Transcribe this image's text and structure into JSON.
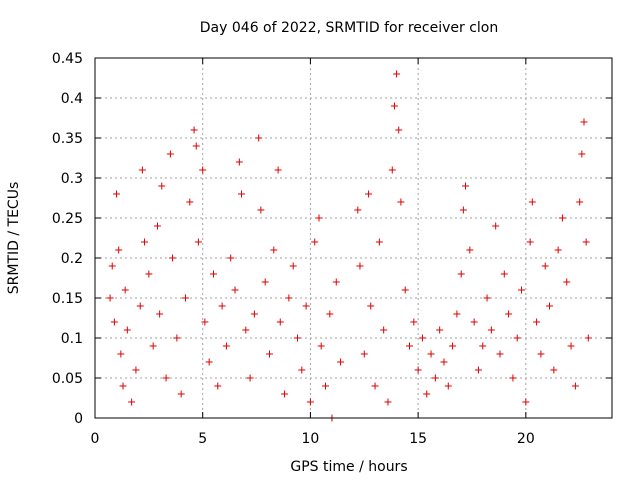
{
  "chart_data": {
    "type": "scatter",
    "title": "Day 046 of 2022, SRMTID for receiver clon",
    "xlabel": "GPS time / hours",
    "ylabel": "SRMTID / TECUs",
    "xlim": [
      0,
      24
    ],
    "ylim": [
      0,
      0.45
    ],
    "xticks": [
      0,
      5,
      10,
      15,
      20
    ],
    "yticks": [
      0,
      0.05,
      0.1,
      0.15,
      0.2,
      0.25,
      0.3,
      0.35,
      0.4,
      0.45
    ],
    "grid": true,
    "marker": "+",
    "color": "#e00000",
    "series": [
      {
        "values": [
          [
            0.7,
            0.15
          ],
          [
            0.8,
            0.19
          ],
          [
            0.9,
            0.12
          ],
          [
            1.0,
            0.28
          ],
          [
            1.1,
            0.21
          ],
          [
            1.2,
            0.08
          ],
          [
            1.3,
            0.04
          ],
          [
            1.4,
            0.16
          ],
          [
            1.5,
            0.11
          ],
          [
            1.7,
            0.02
          ],
          [
            1.9,
            0.06
          ],
          [
            2.1,
            0.14
          ],
          [
            2.2,
            0.31
          ],
          [
            2.3,
            0.22
          ],
          [
            2.5,
            0.18
          ],
          [
            2.7,
            0.09
          ],
          [
            2.9,
            0.24
          ],
          [
            3.0,
            0.13
          ],
          [
            3.1,
            0.29
          ],
          [
            3.3,
            0.05
          ],
          [
            3.5,
            0.33
          ],
          [
            3.6,
            0.2
          ],
          [
            3.8,
            0.1
          ],
          [
            4.0,
            0.03
          ],
          [
            4.2,
            0.15
          ],
          [
            4.4,
            0.27
          ],
          [
            4.6,
            0.36
          ],
          [
            4.7,
            0.34
          ],
          [
            4.8,
            0.22
          ],
          [
            5.0,
            0.31
          ],
          [
            5.1,
            0.12
          ],
          [
            5.3,
            0.07
          ],
          [
            5.5,
            0.18
          ],
          [
            5.7,
            0.04
          ],
          [
            5.9,
            0.14
          ],
          [
            6.1,
            0.09
          ],
          [
            6.3,
            0.2
          ],
          [
            6.5,
            0.16
          ],
          [
            6.7,
            0.32
          ],
          [
            6.8,
            0.28
          ],
          [
            7.0,
            0.11
          ],
          [
            7.2,
            0.05
          ],
          [
            7.4,
            0.13
          ],
          [
            7.6,
            0.35
          ],
          [
            7.7,
            0.26
          ],
          [
            7.9,
            0.17
          ],
          [
            8.1,
            0.08
          ],
          [
            8.3,
            0.21
          ],
          [
            8.5,
            0.31
          ],
          [
            8.6,
            0.12
          ],
          [
            8.8,
            0.03
          ],
          [
            9.0,
            0.15
          ],
          [
            9.2,
            0.19
          ],
          [
            9.4,
            0.1
          ],
          [
            9.6,
            0.06
          ],
          [
            9.8,
            0.14
          ],
          [
            10.0,
            0.02
          ],
          [
            10.2,
            0.22
          ],
          [
            10.4,
            0.25
          ],
          [
            10.5,
            0.09
          ],
          [
            10.7,
            0.04
          ],
          [
            10.9,
            0.13
          ],
          [
            11.0,
            0.0
          ],
          [
            11.2,
            0.17
          ],
          [
            11.4,
            0.07
          ],
          [
            12.2,
            0.26
          ],
          [
            12.3,
            0.19
          ],
          [
            12.5,
            0.08
          ],
          [
            12.7,
            0.28
          ],
          [
            12.8,
            0.14
          ],
          [
            13.0,
            0.04
          ],
          [
            13.2,
            0.22
          ],
          [
            13.4,
            0.11
          ],
          [
            13.6,
            0.02
          ],
          [
            13.8,
            0.31
          ],
          [
            13.9,
            0.39
          ],
          [
            14.0,
            0.43
          ],
          [
            14.1,
            0.36
          ],
          [
            14.2,
            0.27
          ],
          [
            14.4,
            0.16
          ],
          [
            14.6,
            0.09
          ],
          [
            14.8,
            0.12
          ],
          [
            15.0,
            0.06
          ],
          [
            15.2,
            0.1
          ],
          [
            15.4,
            0.03
          ],
          [
            15.6,
            0.08
          ],
          [
            15.8,
            0.05
          ],
          [
            16.0,
            0.11
          ],
          [
            16.2,
            0.07
          ],
          [
            16.4,
            0.04
          ],
          [
            16.6,
            0.09
          ],
          [
            16.8,
            0.13
          ],
          [
            17.0,
            0.18
          ],
          [
            17.1,
            0.26
          ],
          [
            17.2,
            0.29
          ],
          [
            17.4,
            0.21
          ],
          [
            17.6,
            0.12
          ],
          [
            17.8,
            0.06
          ],
          [
            18.0,
            0.09
          ],
          [
            18.2,
            0.15
          ],
          [
            18.4,
            0.11
          ],
          [
            18.6,
            0.24
          ],
          [
            18.8,
            0.08
          ],
          [
            19.0,
            0.18
          ],
          [
            19.2,
            0.13
          ],
          [
            19.4,
            0.05
          ],
          [
            19.6,
            0.1
          ],
          [
            19.8,
            0.16
          ],
          [
            20.0,
            0.02
          ],
          [
            20.2,
            0.22
          ],
          [
            20.3,
            0.27
          ],
          [
            20.5,
            0.12
          ],
          [
            20.7,
            0.08
          ],
          [
            20.9,
            0.19
          ],
          [
            21.1,
            0.14
          ],
          [
            21.3,
            0.06
          ],
          [
            21.5,
            0.21
          ],
          [
            21.7,
            0.25
          ],
          [
            21.9,
            0.17
          ],
          [
            22.1,
            0.09
          ],
          [
            22.3,
            0.04
          ],
          [
            22.5,
            0.27
          ],
          [
            22.6,
            0.33
          ],
          [
            22.7,
            0.37
          ],
          [
            22.8,
            0.22
          ],
          [
            22.9,
            0.1
          ]
        ]
      }
    ]
  }
}
